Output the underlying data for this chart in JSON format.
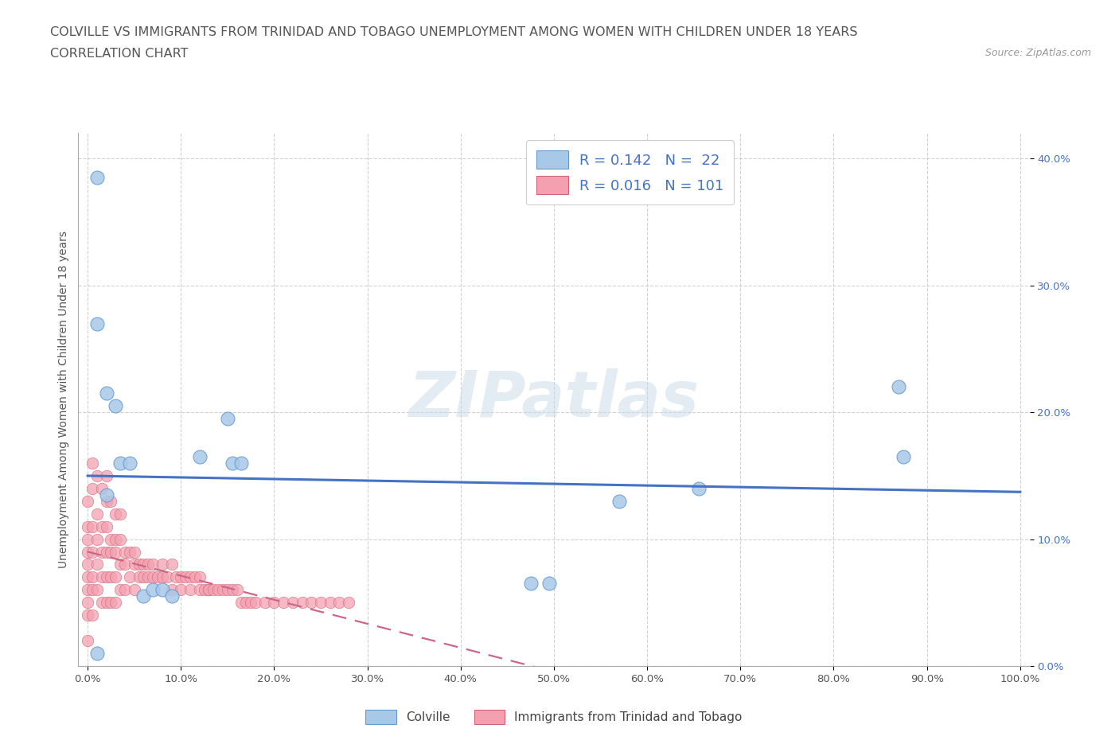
{
  "title_line1": "COLVILLE VS IMMIGRANTS FROM TRINIDAD AND TOBAGO UNEMPLOYMENT AMONG WOMEN WITH CHILDREN UNDER 18 YEARS",
  "title_line2": "CORRELATION CHART",
  "source": "Source: ZipAtlas.com",
  "ylabel": "Unemployment Among Women with Children Under 18 years",
  "xlim": [
    -0.01,
    1.01
  ],
  "ylim": [
    0.0,
    0.42
  ],
  "xticks": [
    0.0,
    0.1,
    0.2,
    0.3,
    0.4,
    0.5,
    0.6,
    0.7,
    0.8,
    0.9,
    1.0
  ],
  "xticklabels": [
    "0.0%",
    "10.0%",
    "20.0%",
    "30.0%",
    "40.0%",
    "50.0%",
    "60.0%",
    "70.0%",
    "80.0%",
    "90.0%",
    "100.0%"
  ],
  "yticks": [
    0.0,
    0.1,
    0.2,
    0.3,
    0.4
  ],
  "yticklabels": [
    "0.0%",
    "10.0%",
    "20.0%",
    "30.0%",
    "40.0%"
  ],
  "colville_color": "#a8c8e8",
  "colville_edge_color": "#6699cc",
  "trinidad_color": "#f4a0b0",
  "trinidad_edge_color": "#cc6677",
  "trendline_colville_color": "#4472c4",
  "trendline_trinidad_color": "#cc6688",
  "colville_R": "0.142",
  "colville_N": "22",
  "trinidad_R": "0.016",
  "trinidad_N": "101",
  "colville_label": "Colville",
  "trinidad_label": "Immigrants from Trinidad and Tobago",
  "watermark": "ZIPatlas",
  "tick_color": "#4472c4",
  "title_color": "#555555",
  "colville_x": [
    0.01,
    0.01,
    0.02,
    0.03,
    0.12,
    0.155,
    0.165,
    0.475,
    0.495,
    0.655,
    0.87,
    0.875,
    0.01,
    0.02,
    0.035,
    0.045,
    0.06,
    0.07,
    0.08,
    0.09,
    0.57,
    0.15
  ],
  "colville_y": [
    0.385,
    0.27,
    0.215,
    0.205,
    0.165,
    0.16,
    0.16,
    0.065,
    0.065,
    0.14,
    0.22,
    0.165,
    0.01,
    0.135,
    0.16,
    0.16,
    0.055,
    0.06,
    0.06,
    0.055,
    0.13,
    0.195
  ],
  "trinidad_x": [
    0.0,
    0.0,
    0.0,
    0.0,
    0.0,
    0.0,
    0.0,
    0.0,
    0.0,
    0.0,
    0.005,
    0.005,
    0.005,
    0.005,
    0.005,
    0.005,
    0.01,
    0.01,
    0.01,
    0.01,
    0.015,
    0.015,
    0.015,
    0.015,
    0.02,
    0.02,
    0.02,
    0.02,
    0.02,
    0.025,
    0.025,
    0.025,
    0.025,
    0.03,
    0.03,
    0.03,
    0.03,
    0.035,
    0.035,
    0.035,
    0.04,
    0.04,
    0.04,
    0.045,
    0.045,
    0.05,
    0.05,
    0.05,
    0.055,
    0.055,
    0.06,
    0.06,
    0.065,
    0.065,
    0.07,
    0.07,
    0.075,
    0.08,
    0.08,
    0.085,
    0.09,
    0.09,
    0.095,
    0.1,
    0.1,
    0.105,
    0.11,
    0.11,
    0.115,
    0.12,
    0.12,
    0.125,
    0.13,
    0.13,
    0.135,
    0.14,
    0.145,
    0.15,
    0.155,
    0.16,
    0.165,
    0.17,
    0.175,
    0.18,
    0.19,
    0.2,
    0.21,
    0.22,
    0.23,
    0.24,
    0.25,
    0.26,
    0.27,
    0.28,
    0.005,
    0.01,
    0.015,
    0.02,
    0.025,
    0.03,
    0.035
  ],
  "trinidad_y": [
    0.13,
    0.11,
    0.1,
    0.09,
    0.08,
    0.07,
    0.06,
    0.05,
    0.04,
    0.02,
    0.14,
    0.11,
    0.09,
    0.07,
    0.06,
    0.04,
    0.12,
    0.1,
    0.08,
    0.06,
    0.11,
    0.09,
    0.07,
    0.05,
    0.13,
    0.11,
    0.09,
    0.07,
    0.05,
    0.1,
    0.09,
    0.07,
    0.05,
    0.1,
    0.09,
    0.07,
    0.05,
    0.1,
    0.08,
    0.06,
    0.09,
    0.08,
    0.06,
    0.09,
    0.07,
    0.09,
    0.08,
    0.06,
    0.08,
    0.07,
    0.08,
    0.07,
    0.08,
    0.07,
    0.08,
    0.07,
    0.07,
    0.08,
    0.07,
    0.07,
    0.08,
    0.06,
    0.07,
    0.07,
    0.06,
    0.07,
    0.07,
    0.06,
    0.07,
    0.07,
    0.06,
    0.06,
    0.06,
    0.06,
    0.06,
    0.06,
    0.06,
    0.06,
    0.06,
    0.06,
    0.05,
    0.05,
    0.05,
    0.05,
    0.05,
    0.05,
    0.05,
    0.05,
    0.05,
    0.05,
    0.05,
    0.05,
    0.05,
    0.05,
    0.16,
    0.15,
    0.14,
    0.15,
    0.13,
    0.12,
    0.12
  ]
}
